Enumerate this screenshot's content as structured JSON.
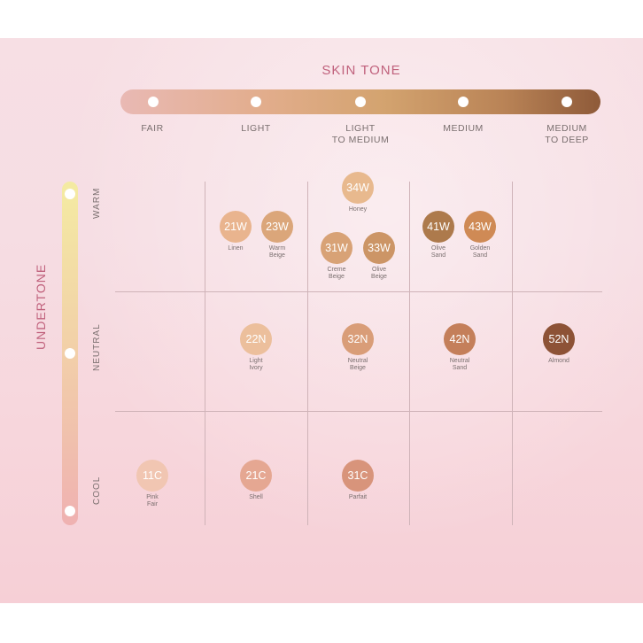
{
  "chart_title": "SKIN TONE",
  "undertone_title": "UNDERTONE",
  "skin_tones": [
    "FAIR",
    "LIGHT",
    "LIGHT\nTO MEDIUM",
    "MEDIUM",
    "MEDIUM\nTO DEEP"
  ],
  "undertones": [
    "WARM",
    "NEUTRAL",
    "COOL"
  ],
  "shades": [
    {
      "code": "34W",
      "name": "Honey",
      "color": "#e8b98e"
    },
    {
      "code": "21W",
      "name": "Linen",
      "color": "#e9b48e"
    },
    {
      "code": "23W",
      "name": "Warm\nBeige",
      "color": "#dba67a"
    },
    {
      "code": "31W",
      "name": "Creme\nBeige",
      "color": "#d8a276"
    },
    {
      "code": "33W",
      "name": "Olive\nBeige",
      "color": "#cc9566"
    },
    {
      "code": "41W",
      "name": "Olive\nSand",
      "color": "#ad7a4c"
    },
    {
      "code": "43W",
      "name": "Golden\nSand",
      "color": "#cf8a55"
    },
    {
      "code": "22N",
      "name": "Light\nIvory",
      "color": "#ecbf9c"
    },
    {
      "code": "32N",
      "name": "Neutral\nBeige",
      "color": "#d99d78"
    },
    {
      "code": "42N",
      "name": "Neutral\nSand",
      "color": "#c47f5a"
    },
    {
      "code": "52N",
      "name": "Almond",
      "color": "#8d5236"
    },
    {
      "code": "11C",
      "name": "Pink\nFair",
      "color": "#f1c6b2"
    },
    {
      "code": "21C",
      "name": "Shell",
      "color": "#e5a792"
    },
    {
      "code": "31C",
      "name": "Parfait",
      "color": "#d8947b"
    }
  ]
}
